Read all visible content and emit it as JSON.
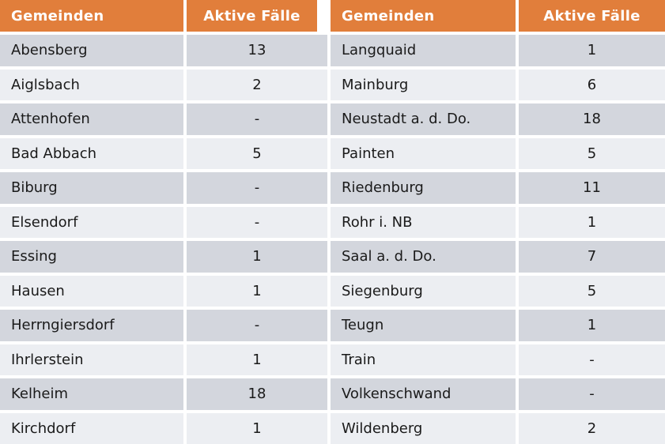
{
  "chart_data": {
    "type": "table",
    "title": "",
    "columns": [
      "Gemeinden",
      "Aktive Fälle",
      "Gemeinden",
      "Aktive Fälle"
    ],
    "rows": [
      [
        "Abensberg",
        "13",
        "Langquaid",
        "1"
      ],
      [
        "Aiglsbach",
        "2",
        "Mainburg",
        "6"
      ],
      [
        "Attenhofen",
        "-",
        "Neustadt a. d. Do.",
        "18"
      ],
      [
        "Bad Abbach",
        "5",
        "Painten",
        "5"
      ],
      [
        "Biburg",
        "-",
        "Riedenburg",
        "11"
      ],
      [
        "Elsendorf",
        "-",
        "Rohr i. NB",
        "1"
      ],
      [
        "Essing",
        "1",
        "Saal a. d. Do.",
        "7"
      ],
      [
        "Hausen",
        "1",
        "Siegenburg",
        "5"
      ],
      [
        "Herrngiersdorf",
        "-",
        "Teugn",
        "1"
      ],
      [
        "Ihrlerstein",
        "1",
        "Train",
        "-"
      ],
      [
        "Kelheim",
        "18",
        "Volkenschwand",
        "-"
      ],
      [
        "Kirchdorf",
        "1",
        "Wildenberg",
        "2"
      ]
    ]
  },
  "colors": {
    "header_bg": "#E17E3B",
    "header_text": "#FFFFFF",
    "row_dark": "#D3D6DD",
    "row_light": "#ECEEF2",
    "cell_text": "#1A1A1A"
  }
}
